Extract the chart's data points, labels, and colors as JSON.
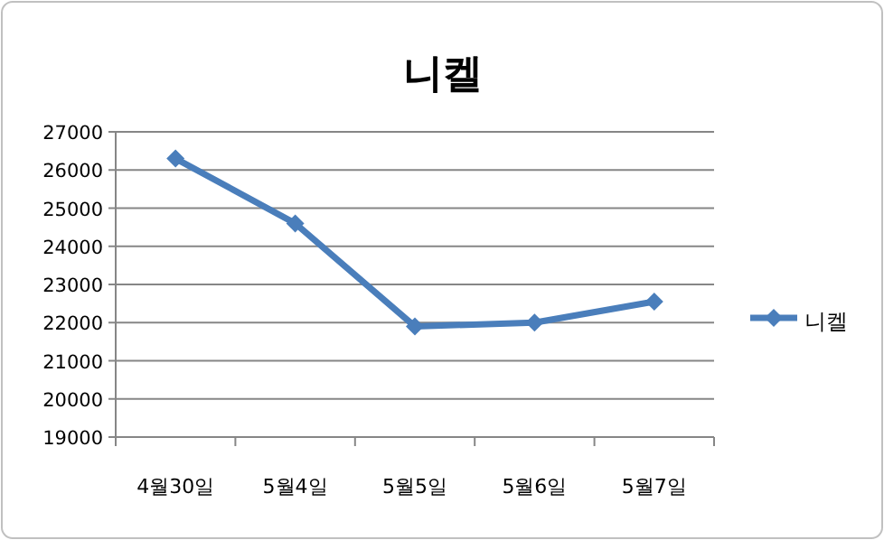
{
  "chart_data": {
    "type": "line",
    "title": "니켈",
    "categories": [
      "4월30일",
      "5월4일",
      "5월5일",
      "5월6일",
      "5월7일"
    ],
    "series": [
      {
        "name": "니켈",
        "color": "#4a7ebb",
        "values": [
          26300,
          24600,
          21900,
          22000,
          22550
        ]
      }
    ],
    "ylim": [
      19000,
      27000
    ],
    "yticks": [
      19000,
      20000,
      21000,
      22000,
      23000,
      24000,
      25000,
      26000,
      27000
    ],
    "grid": "y",
    "legend": "right",
    "marker": "diamond",
    "line_style": "solid"
  }
}
